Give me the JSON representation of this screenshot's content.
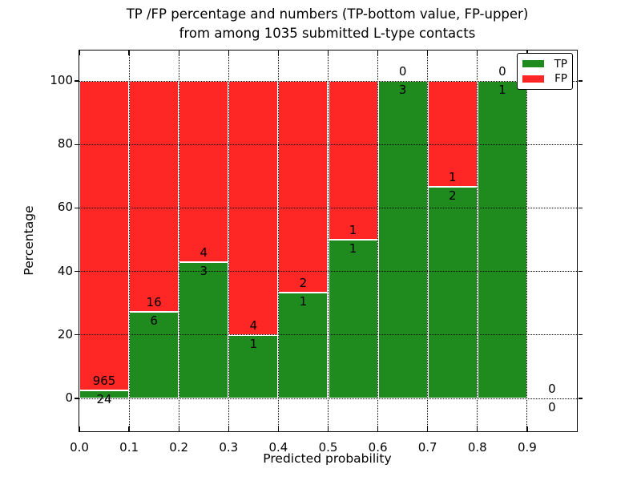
{
  "title": {
    "line1": "TP /FP percentage and numbers (TP-bottom value, FP-upper)",
    "line2": "from among 1035 submitted L-type contacts"
  },
  "chart_data": {
    "type": "bar",
    "subtype": "stacked-percentage-histogram",
    "xlabel": "Predicted probability",
    "ylabel": "Percentage",
    "bin_width": 0.1,
    "bin_starts": [
      0.0,
      0.1,
      0.2,
      0.3,
      0.4,
      0.5,
      0.6,
      0.7,
      0.8,
      0.9
    ],
    "series": [
      {
        "name": "TP",
        "color": "#1f8b1f",
        "counts": [
          24,
          6,
          3,
          1,
          1,
          1,
          3,
          2,
          1,
          0
        ]
      },
      {
        "name": "FP",
        "color": "#ff2626",
        "counts": [
          965,
          16,
          4,
          4,
          2,
          1,
          0,
          1,
          0,
          0
        ]
      }
    ],
    "tp_percent_by_bin": [
      2.43,
      27.27,
      42.86,
      20.0,
      33.33,
      50.0,
      100.0,
      66.67,
      100.0,
      null
    ],
    "total_contacts": 1035,
    "yticks": [
      0,
      20,
      40,
      60,
      80,
      100
    ],
    "xtick_labels": [
      "0.0",
      "0.1",
      "0.2",
      "0.3",
      "0.4",
      "0.5",
      "0.6",
      "0.7",
      "0.8",
      "0.9"
    ],
    "xlim": [
      0.0,
      1.0
    ],
    "ylim": [
      -10.4,
      109.6
    ],
    "grid": "dotted black, both axes, drawn above bars",
    "legend": {
      "position": "upper right",
      "entries": [
        "TP",
        "FP"
      ]
    },
    "bar_edge_color": "#ffffff",
    "text_color": "#000000"
  }
}
